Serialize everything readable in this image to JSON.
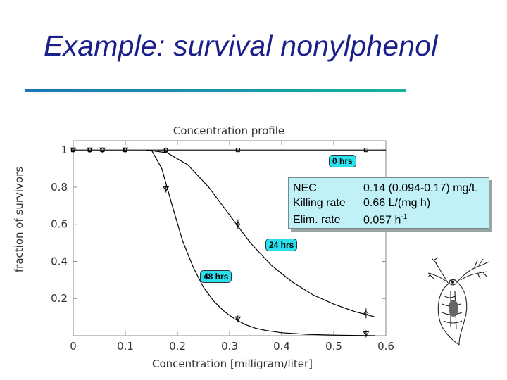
{
  "slide": {
    "title": "Example: survival nonylphenol"
  },
  "colors": {
    "title": "#1a1f8a",
    "label_fill": "#29e0ef",
    "box_fill": "#bff1f6",
    "curve": "#000000"
  },
  "chart_data": {
    "type": "scatter",
    "title": "Concentration profile",
    "xlabel": "Concentration [milligram/liter]",
    "ylabel": "fraction of survivors",
    "xlim": [
      0,
      0.6
    ],
    "ylim": [
      0,
      1.05
    ],
    "xticks": [
      "0",
      "0.1",
      "0.2",
      "0.3",
      "0.4",
      "0.5",
      "0.6"
    ],
    "yticks": [
      "0.2",
      "0.4",
      "0.6",
      "0.8",
      "1"
    ],
    "x": [
      0.0,
      0.032,
      0.056,
      0.1,
      0.178,
      0.316,
      0.562
    ],
    "series": [
      {
        "name": "0 hrs",
        "marker": "square",
        "values": [
          1.0,
          1.0,
          1.0,
          1.0,
          1.0,
          1.0,
          1.0
        ]
      },
      {
        "name": "24 hrs",
        "marker": "diamond",
        "values": [
          1.0,
          1.0,
          1.0,
          1.0,
          1.0,
          0.6,
          0.12
        ]
      },
      {
        "name": "48 hrs",
        "marker": "triangle",
        "values": [
          1.0,
          1.0,
          1.0,
          1.0,
          0.79,
          0.09,
          0.01
        ]
      }
    ],
    "fits": [
      {
        "name": "0 hrs",
        "x": [
          0,
          0.6
        ],
        "y": [
          1.0,
          1.0
        ]
      },
      {
        "name": "24 hrs",
        "x": [
          0.14,
          0.18,
          0.22,
          0.26,
          0.3,
          0.34,
          0.38,
          0.42,
          0.46,
          0.5,
          0.54,
          0.58
        ],
        "y": [
          1.0,
          0.985,
          0.92,
          0.8,
          0.65,
          0.5,
          0.38,
          0.29,
          0.22,
          0.17,
          0.13,
          0.1
        ]
      },
      {
        "name": "48 hrs",
        "x": [
          0.15,
          0.17,
          0.19,
          0.21,
          0.23,
          0.25,
          0.27,
          0.29,
          0.31,
          0.33,
          0.35,
          0.37,
          0.4,
          0.45,
          0.5,
          0.55,
          0.58
        ],
        "y": [
          1.0,
          0.9,
          0.7,
          0.51,
          0.37,
          0.26,
          0.185,
          0.13,
          0.09,
          0.06,
          0.04,
          0.028,
          0.016,
          0.007,
          0.003,
          0.001,
          0.0
        ]
      }
    ],
    "grid": false,
    "legend": "inline labels"
  },
  "annotations": {
    "hrs0": "0 hrs",
    "hrs24": "24 hrs",
    "hrs48": "48 hrs"
  },
  "params": {
    "nec_label": "NEC",
    "nec_value": "0.14 (0.094-0.17) mg/L",
    "kill_label": "Killing rate",
    "kill_value": "0.66 L/(mg h)",
    "elim_label": "Elim. rate",
    "elim_value": "0.057 h",
    "elim_exp": "-1"
  },
  "illustration": {
    "icon": "daphnia-icon"
  }
}
